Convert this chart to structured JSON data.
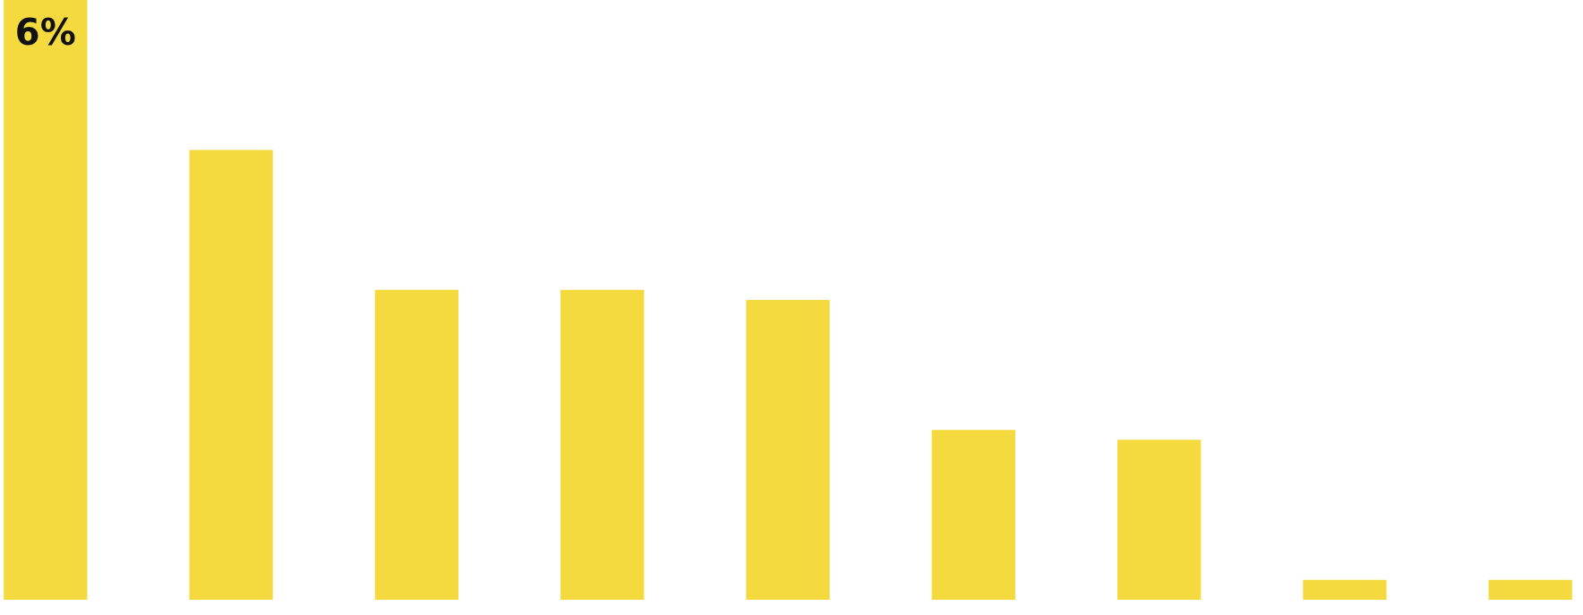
{
  "chart_data": {
    "type": "bar",
    "categories": [
      null,
      null,
      null,
      null,
      null,
      null,
      null,
      null,
      null
    ],
    "values": [
      6,
      4.5,
      3.1,
      3.1,
      3,
      1.7,
      1.6,
      0.2,
      0.2
    ],
    "value_labels": [
      "6%",
      null,
      null,
      null,
      null,
      null,
      null,
      null,
      null
    ],
    "color": "#f4da3f"
  }
}
